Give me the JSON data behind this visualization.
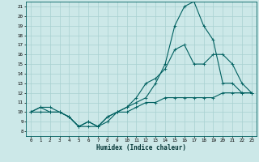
{
  "title": "",
  "xlabel": "Humidex (Indice chaleur)",
  "bg_color": "#cce8e8",
  "line_color": "#006060",
  "grid_color": "#a8d0d0",
  "xlim": [
    -0.5,
    23.5
  ],
  "ylim": [
    7.5,
    21.5
  ],
  "yticks": [
    8,
    9,
    10,
    11,
    12,
    13,
    14,
    15,
    16,
    17,
    18,
    19,
    20,
    21
  ],
  "xticks": [
    0,
    1,
    2,
    3,
    4,
    5,
    6,
    7,
    8,
    9,
    10,
    11,
    12,
    13,
    14,
    15,
    16,
    17,
    18,
    19,
    20,
    21,
    22,
    23
  ],
  "curve1_x": [
    0,
    1,
    2,
    3,
    4,
    5,
    6,
    7,
    8,
    9,
    10,
    11,
    12,
    13,
    14,
    15,
    16,
    17,
    18,
    19,
    20,
    21,
    22,
    23
  ],
  "curve1_y": [
    10,
    10.5,
    10.5,
    10,
    9.5,
    8.5,
    9,
    8.5,
    9.5,
    10,
    10.5,
    11,
    11.5,
    13,
    15,
    19,
    21,
    21.5,
    19,
    17.5,
    13,
    13,
    12,
    12
  ],
  "curve2_x": [
    0,
    1,
    2,
    3,
    4,
    5,
    6,
    7,
    8,
    9,
    10,
    11,
    12,
    13,
    14,
    15,
    16,
    17,
    18,
    19,
    20,
    21,
    22,
    23
  ],
  "curve2_y": [
    10,
    10.5,
    10,
    10,
    9.5,
    8.5,
    9,
    8.5,
    9.5,
    10,
    10.5,
    11.5,
    13,
    13.5,
    14.5,
    16.5,
    17,
    15,
    15,
    16,
    16,
    15,
    13,
    12
  ],
  "curve3_x": [
    0,
    1,
    2,
    3,
    4,
    5,
    6,
    7,
    8,
    9,
    10,
    11,
    12,
    13,
    14,
    15,
    16,
    17,
    18,
    19,
    20,
    21,
    22,
    23
  ],
  "curve3_y": [
    10,
    10,
    10,
    10,
    9.5,
    8.5,
    8.5,
    8.5,
    9,
    10,
    10,
    10.5,
    11,
    11,
    11.5,
    11.5,
    11.5,
    11.5,
    11.5,
    11.5,
    12,
    12,
    12,
    12
  ]
}
